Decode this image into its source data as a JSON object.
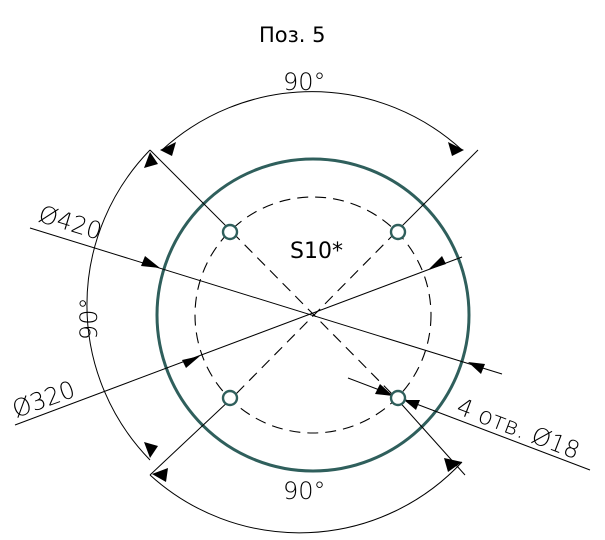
{
  "title": "Поз. 5",
  "center_label": "S10*",
  "dims": {
    "angle_top": "90°",
    "angle_left": "90°",
    "angle_bottom": "90°",
    "outer_diameter": "Ø420",
    "bolt_circle_diameter": "Ø320",
    "holes_callout": "4 отв. Ø18"
  },
  "colors": {
    "outline": "#2f5f5c",
    "lines": "#000000"
  }
}
